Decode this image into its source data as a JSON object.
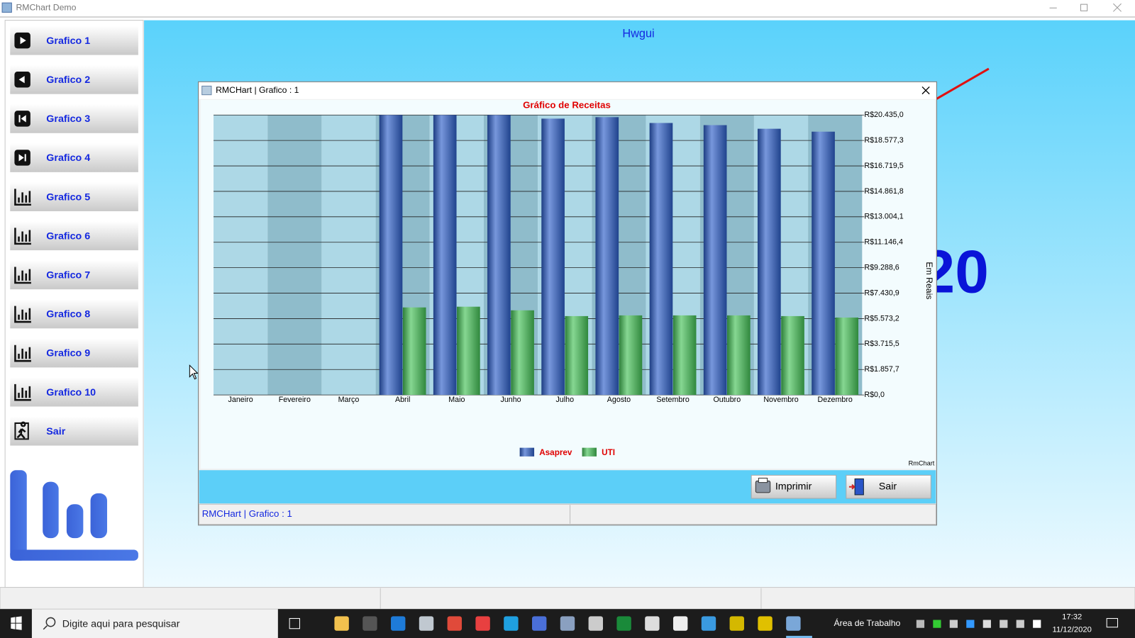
{
  "window": {
    "title": "RMChart Demo"
  },
  "sidebar": {
    "buttons": [
      "Grafico 1",
      "Grafico 2",
      "Grafico 3",
      "Grafico 4",
      "Grafico 5",
      "Grafico 6",
      "Grafico 7",
      "Grafico 8",
      "Grafico 9",
      "Grafico 10",
      "Sair"
    ]
  },
  "main": {
    "header": "Hwgui",
    "big_text": "20"
  },
  "dialog": {
    "title": "RMCHart | Grafico : 1",
    "buttons": [
      "Imprimir",
      "Sair"
    ],
    "status": "RMCHart | Grafico : 1"
  },
  "chart_data": {
    "type": "bar",
    "title": "Gráfico de Receitas",
    "y_label": "Em Reais",
    "footer": "RmChart",
    "categories": [
      "Janeiro",
      "Fevereiro",
      "Março",
      "Abril",
      "Maio",
      "Junho",
      "Julho",
      "Agosto",
      "Setembro",
      "Outubro",
      "Novembro",
      "Dezembro"
    ],
    "series": [
      {
        "name": "Asaprev",
        "color": "#2e5fc9",
        "values": [
          null,
          null,
          null,
          20435,
          20435,
          20435,
          20171,
          20277,
          19854,
          19696,
          19432,
          19220
        ]
      },
      {
        "name": "UTI",
        "color": "#45c257",
        "values": [
          null,
          null,
          null,
          6389,
          6442,
          6178,
          5756,
          5808,
          5808,
          5808,
          5756,
          5650
        ]
      }
    ],
    "ylim": [
      0,
      20435
    ],
    "yticks": [
      {
        "value": 0,
        "label": "R$0,0"
      },
      {
        "value": 1857.7,
        "label": "R$1.857,7"
      },
      {
        "value": 3715.5,
        "label": "R$3.715,5"
      },
      {
        "value": 5573.2,
        "label": "R$5.573,2"
      },
      {
        "value": 7430.9,
        "label": "R$7.430,9"
      },
      {
        "value": 9288.6,
        "label": "R$9.288,6"
      },
      {
        "value": 11146.4,
        "label": "R$11.146,4"
      },
      {
        "value": 13004.1,
        "label": "R$13.004,1"
      },
      {
        "value": 14861.8,
        "label": "R$14.861,8"
      },
      {
        "value": 16719.5,
        "label": "R$16.719,5"
      },
      {
        "value": 18577.3,
        "label": "R$18.577,3"
      },
      {
        "value": 20435.0,
        "label": "R$20.435,0"
      }
    ],
    "grid": true,
    "legend": "bottom"
  },
  "taskbar": {
    "search": "Digite aqui para pesquisar",
    "desktop": "Área de Trabalho",
    "time": "17:32",
    "date": "11/12/2020"
  }
}
